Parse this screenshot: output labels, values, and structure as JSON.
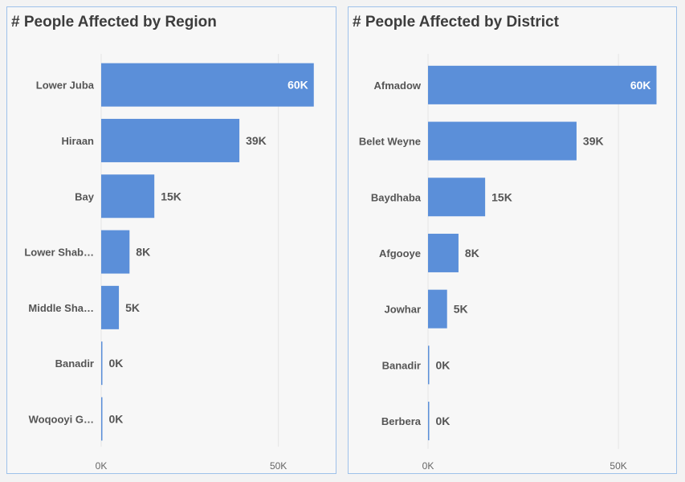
{
  "chart_data": [
    {
      "type": "bar",
      "orientation": "horizontal",
      "title": "# People Affected by Region",
      "categories": [
        "Lower Juba",
        "Hiraan",
        "Bay",
        "Lower Shab…",
        "Middle Sha…",
        "Banadir",
        "Woqooyi G…"
      ],
      "values": [
        60000,
        39000,
        15000,
        8000,
        5000,
        300,
        200
      ],
      "data_labels": [
        "60K",
        "39K",
        "15K",
        "8K",
        "5K",
        "0K",
        "0K"
      ],
      "xlim": [
        0,
        63000
      ],
      "xticks": [
        0,
        50000
      ],
      "xtick_labels": [
        "0K",
        "50K"
      ],
      "grid": true,
      "bar_color": "#5b8fd9"
    },
    {
      "type": "bar",
      "orientation": "horizontal",
      "title": "# People Affected by District",
      "categories": [
        "Afmadow",
        "Belet Weyne",
        "Baydhaba",
        "Afgooye",
        "Jowhar",
        "Banadir",
        "Berbera"
      ],
      "values": [
        60000,
        39000,
        15000,
        8000,
        5000,
        300,
        200
      ],
      "data_labels": [
        "60K",
        "39K",
        "15K",
        "8K",
        "5K",
        "0K",
        "0K"
      ],
      "xlim": [
        0,
        62000
      ],
      "xticks": [
        0,
        50000
      ],
      "xtick_labels": [
        "0K",
        "50K"
      ],
      "grid": true,
      "bar_color": "#5b8fd9"
    }
  ]
}
